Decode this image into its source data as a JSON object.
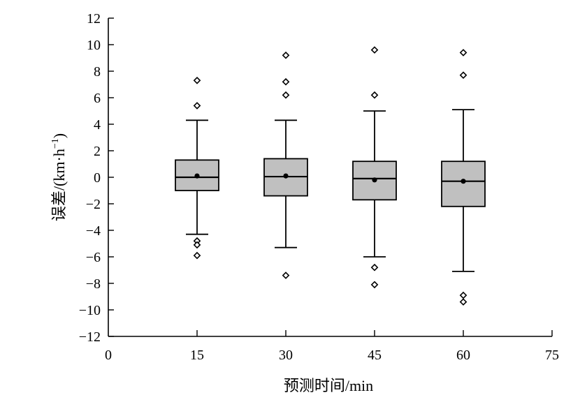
{
  "chart_data": {
    "type": "boxplot",
    "xlabel": "预测时间/min",
    "ylabel_main": "误差/(km·h",
    "ylabel_sup": "−1",
    "ylabel_close": ")",
    "xlim": [
      0,
      75
    ],
    "ylim": [
      -12,
      12
    ],
    "x_ticks": [
      0,
      15,
      30,
      45,
      60,
      75
    ],
    "y_ticks": [
      -12,
      -10,
      -8,
      -6,
      -4,
      -2,
      0,
      2,
      4,
      6,
      8,
      10,
      12
    ],
    "x_tick_labels": [
      "0",
      "15",
      "30",
      "45",
      "60",
      "75"
    ],
    "y_tick_labels": [
      "−12",
      "−10",
      "−8",
      "−6",
      "−4",
      "−2",
      "0",
      "2",
      "4",
      "6",
      "8",
      "10",
      "12"
    ],
    "grid": false,
    "box_color": "#c0c0c0",
    "boxes": [
      {
        "x": 15,
        "whisker_low": -4.3,
        "q1": -1.0,
        "median": 0.0,
        "q3": 1.3,
        "whisker_high": 4.3,
        "mean": 0.1,
        "outliers": [
          7.3,
          5.4,
          -4.8,
          -5.1,
          -5.9
        ]
      },
      {
        "x": 30,
        "whisker_low": -5.3,
        "q1": -1.4,
        "median": 0.05,
        "q3": 1.4,
        "whisker_high": 4.3,
        "mean": 0.1,
        "outliers": [
          9.2,
          7.2,
          6.2,
          -7.4
        ]
      },
      {
        "x": 45,
        "whisker_low": -6.0,
        "q1": -1.7,
        "median": -0.1,
        "q3": 1.2,
        "whisker_high": 5.0,
        "mean": -0.2,
        "outliers": [
          9.6,
          6.2,
          -6.8,
          -8.1
        ]
      },
      {
        "x": 60,
        "whisker_low": -7.1,
        "q1": -2.2,
        "median": -0.3,
        "q3": 1.2,
        "whisker_high": 5.1,
        "mean": -0.3,
        "outliers": [
          9.4,
          7.7,
          -8.9,
          -9.4
        ]
      }
    ]
  }
}
